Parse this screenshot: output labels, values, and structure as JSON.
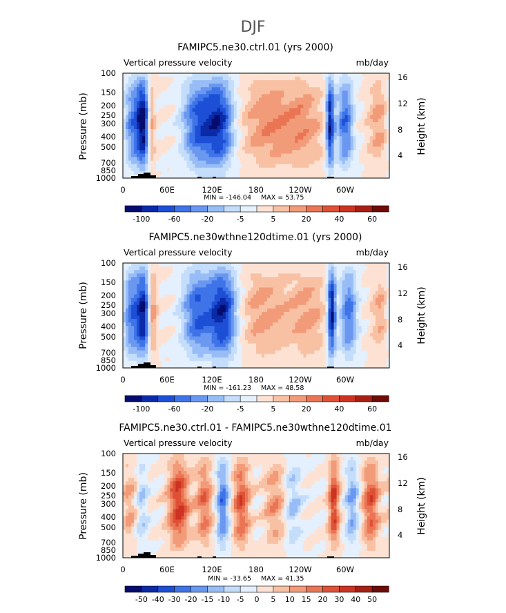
{
  "figure": {
    "title": "DJF"
  },
  "chart_data": [
    {
      "type": "heatmap",
      "title": "FAMIPC5.ne30.ctrl.01 (yrs 2000)",
      "left_string": "Vertical pressure velocity",
      "units": "mb/day",
      "ylabel": "Pressure (mb)",
      "y2label": "Height (km)",
      "y_ticks": [
        "100",
        "150",
        "200",
        "250",
        "300",
        "400",
        "500",
        "700",
        "850",
        "1000"
      ],
      "y2_ticks": [
        "16",
        "12",
        "8",
        "4"
      ],
      "x_ticks": [
        "0",
        "60E",
        "120E",
        "180",
        "120W",
        "60W"
      ],
      "min_label": "MIN = -146.04",
      "max_label": "MAX =  53.75",
      "colorbar_labels": [
        "-100",
        "-60",
        "-20",
        "-5",
        "5",
        "20",
        "40",
        "60"
      ],
      "colorbar_colors": [
        "#050c6e",
        "#0a2aa8",
        "#1d4fd6",
        "#3e74e8",
        "#6a97f0",
        "#98bdf6",
        "#c4ddfb",
        "#e4f0fd",
        "#fde2d3",
        "#f8c1a4",
        "#f29b79",
        "#ea7555",
        "#de5136",
        "#cc3322",
        "#a81f14",
        "#6e0c07"
      ],
      "features": [
        {
          "lon": 15,
          "amp": -55,
          "w": 10
        },
        {
          "lon": 28,
          "amp": -75,
          "w": 6
        },
        {
          "lon": 38,
          "amp": 40,
          "w": 4
        },
        {
          "lon": 100,
          "amp": -60,
          "w": 14
        },
        {
          "lon": 130,
          "amp": -80,
          "w": 14
        },
        {
          "lon": 195,
          "amp": 35,
          "w": 25
        },
        {
          "lon": 245,
          "amp": 30,
          "w": 20
        },
        {
          "lon": 280,
          "amp": -90,
          "w": 4
        },
        {
          "lon": 300,
          "amp": -60,
          "w": 8
        },
        {
          "lon": 345,
          "amp": 30,
          "w": 10
        }
      ]
    },
    {
      "type": "heatmap",
      "title": "FAMIPC5.ne30wthne120dtime.01 (yrs 2000)",
      "left_string": "Vertical pressure velocity",
      "units": "mb/day",
      "ylabel": "Pressure (mb)",
      "y2label": "Height (km)",
      "y_ticks": [
        "100",
        "150",
        "200",
        "250",
        "300",
        "400",
        "500",
        "700",
        "850",
        "1000"
      ],
      "y2_ticks": [
        "16",
        "12",
        "8",
        "4"
      ],
      "x_ticks": [
        "0",
        "60E",
        "120E",
        "180",
        "120W",
        "60W"
      ],
      "min_label": "MIN = -161.23",
      "max_label": "MAX =  48.58",
      "colorbar_labels": [
        "-100",
        "-60",
        "-20",
        "-5",
        "5",
        "20",
        "40",
        "60"
      ],
      "colorbar_colors": [
        "#050c6e",
        "#0a2aa8",
        "#1d4fd6",
        "#3e74e8",
        "#6a97f0",
        "#98bdf6",
        "#c4ddfb",
        "#e4f0fd",
        "#fde2d3",
        "#f8c1a4",
        "#f29b79",
        "#ea7555",
        "#de5136",
        "#cc3322",
        "#a81f14",
        "#6e0c07"
      ],
      "features": [
        {
          "lon": 12,
          "amp": -60,
          "w": 10
        },
        {
          "lon": 28,
          "amp": -70,
          "w": 6
        },
        {
          "lon": 40,
          "amp": 40,
          "w": 4
        },
        {
          "lon": 100,
          "amp": -60,
          "w": 14
        },
        {
          "lon": 135,
          "amp": -85,
          "w": 14
        },
        {
          "lon": 190,
          "amp": 30,
          "w": 25
        },
        {
          "lon": 250,
          "amp": 28,
          "w": 18
        },
        {
          "lon": 282,
          "amp": -95,
          "w": 4
        },
        {
          "lon": 305,
          "amp": -55,
          "w": 8
        },
        {
          "lon": 350,
          "amp": 28,
          "w": 10
        }
      ]
    },
    {
      "type": "heatmap",
      "title": "FAMIPC5.ne30.ctrl.01 - FAMIPC5.ne30wthne120dtime.01",
      "left_string": "Vertical pressure velocity",
      "units": "mb/day",
      "ylabel": "Pressure (mb)",
      "y2label": "Height (km)",
      "y_ticks": [
        "100",
        "150",
        "200",
        "250",
        "300",
        "400",
        "500",
        "700",
        "850",
        "1000"
      ],
      "y2_ticks": [
        "16",
        "12",
        "8",
        "4"
      ],
      "x_ticks": [
        "0",
        "60E",
        "120E",
        "180",
        "120W",
        "60W"
      ],
      "min_label": "MIN = -33.65",
      "max_label": "MAX =  41.35",
      "colorbar_labels": [
        "-50",
        "-40",
        "-30",
        "-20",
        "-15",
        "-10",
        "-5",
        "0",
        "5",
        "10",
        "15",
        "20",
        "30",
        "40",
        "50"
      ],
      "colorbar_colors": [
        "#050c6e",
        "#0a2aa8",
        "#1d4fd6",
        "#3e74e8",
        "#6a97f0",
        "#98bdf6",
        "#c4ddfb",
        "#e4f0fd",
        "#fde2d3",
        "#f8c1a4",
        "#f29b79",
        "#ea7555",
        "#de5136",
        "#cc3322",
        "#a81f14",
        "#6e0c07"
      ],
      "features": [
        {
          "lon": 10,
          "amp": 12,
          "w": 8
        },
        {
          "lon": 25,
          "amp": -12,
          "w": 6
        },
        {
          "lon": 75,
          "amp": 30,
          "w": 10
        },
        {
          "lon": 110,
          "amp": 20,
          "w": 8
        },
        {
          "lon": 135,
          "amp": -25,
          "w": 6
        },
        {
          "lon": 160,
          "amp": 25,
          "w": 8
        },
        {
          "lon": 205,
          "amp": 15,
          "w": 10
        },
        {
          "lon": 230,
          "amp": -12,
          "w": 8
        },
        {
          "lon": 285,
          "amp": 30,
          "w": 5
        },
        {
          "lon": 310,
          "amp": -18,
          "w": 6
        },
        {
          "lon": 335,
          "amp": 25,
          "w": 8
        }
      ]
    }
  ]
}
